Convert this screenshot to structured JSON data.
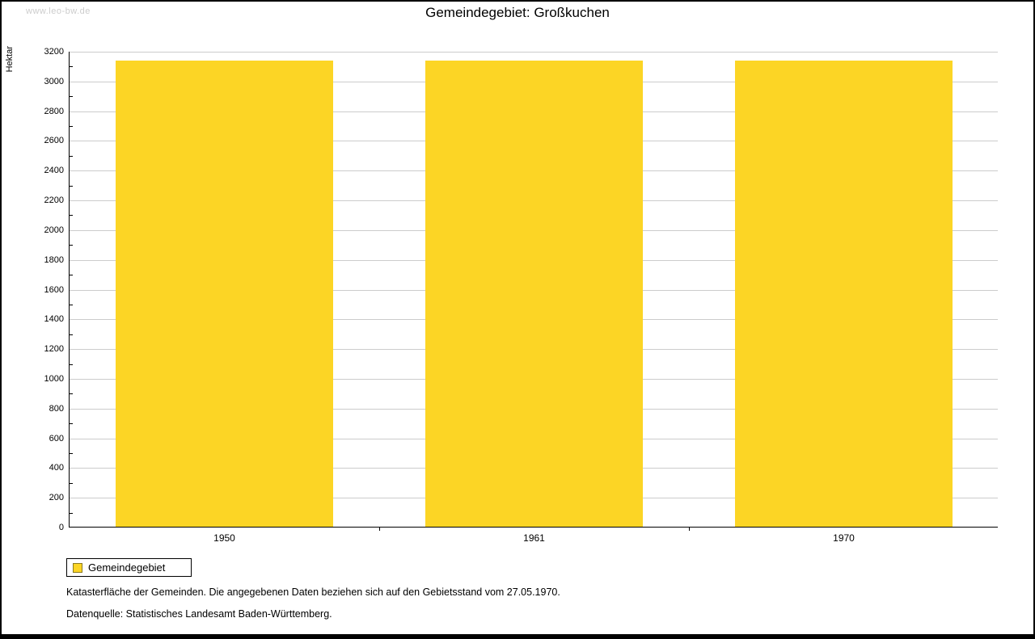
{
  "watermark": "www.leo-bw.de",
  "title": "Gemeindegebiet: Großkuchen",
  "legend": {
    "label": "Gemeindegebiet",
    "swatch_color": "#FCD525"
  },
  "footnotes": {
    "line1": "Katasterfläche der Gemeinden. Die angegebenen Daten beziehen sich auf den Gebietsstand vom 27.05.1970.",
    "line2": "Datenquelle: Statistisches Landesamt Baden-Württemberg."
  },
  "colors": {
    "bar": "#FCD525",
    "grid": "#cccccc",
    "axis": "#000000",
    "watermark": "#cccccc"
  },
  "chart_data": {
    "type": "bar",
    "title": "Gemeindegebiet: Großkuchen",
    "categories": [
      "1950",
      "1961",
      "1970"
    ],
    "series": [
      {
        "name": "Gemeindegebiet",
        "values": [
          3135,
          3135,
          3135
        ]
      }
    ],
    "xlabel": "",
    "ylabel": "Hektar",
    "ylim": [
      0,
      3200
    ],
    "ytick_major": 200,
    "ytick_minor": 100,
    "grid": true,
    "legend_position": "bottom-left",
    "bar_color": "#FCD525"
  }
}
